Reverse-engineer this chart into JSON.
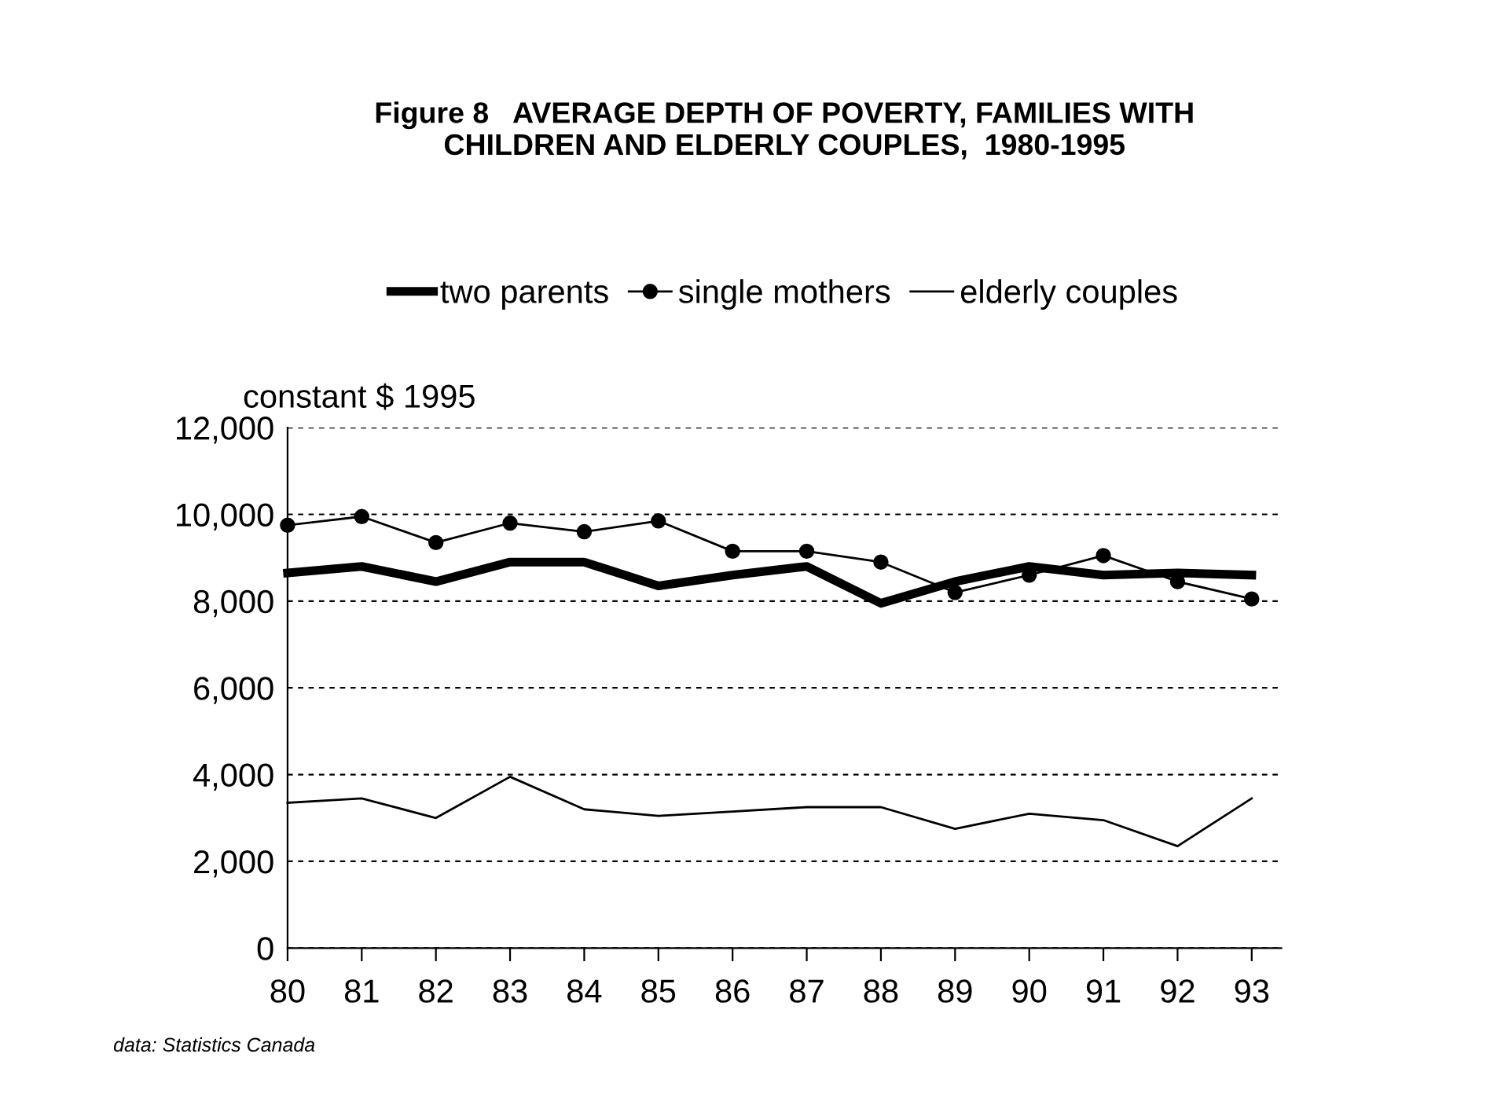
{
  "chart_data": {
    "type": "line",
    "title": "Figure 8   AVERAGE DEPTH OF POVERTY, FAMILIES WITH\nCHILDREN AND ELDERLY COUPLES,  1980-1995",
    "ylabel": "constant $ 1995",
    "x": [
      80,
      81,
      82,
      83,
      84,
      85,
      86,
      87,
      88,
      89,
      90,
      91,
      92,
      93
    ],
    "series": [
      {
        "name": "two parents",
        "color": "#000000",
        "marker": "none",
        "values": [
          8650,
          8800,
          8450,
          8900,
          8900,
          8350,
          8600,
          8800,
          7950,
          8450,
          8800,
          8600,
          8650,
          8600
        ]
      },
      {
        "name": "single mothers",
        "color": "#000000",
        "marker": "circle",
        "values": [
          9750,
          9950,
          9350,
          9800,
          9600,
          9850,
          9150,
          9150,
          8900,
          8200,
          8600,
          9050,
          8450,
          8050
        ]
      },
      {
        "name": "elderly couples",
        "color": "#000000",
        "marker": "none",
        "values": [
          3350,
          3450,
          3000,
          3950,
          3200,
          3050,
          3150,
          3250,
          3250,
          2750,
          3100,
          2950,
          2350,
          3450
        ]
      }
    ],
    "xlim": [
      80,
      93.4
    ],
    "xticks": [
      80,
      81,
      82,
      83,
      84,
      85,
      86,
      87,
      88,
      89,
      90,
      91,
      92,
      93
    ],
    "ylim": [
      0,
      12000
    ],
    "yticks": [
      {
        "value": 0,
        "label": "0"
      },
      {
        "value": 2000,
        "label": "2,000"
      },
      {
        "value": 4000,
        "label": "4,000"
      },
      {
        "value": 6000,
        "label": "6,000"
      },
      {
        "value": 8000,
        "label": "8,000"
      },
      {
        "value": 10000,
        "label": "10,000"
      },
      {
        "value": 12000,
        "label": "12,000"
      }
    ],
    "grid": "y",
    "legend": "top",
    "line_style": "solid",
    "annotations": [
      "data: Statistics Canada"
    ]
  }
}
